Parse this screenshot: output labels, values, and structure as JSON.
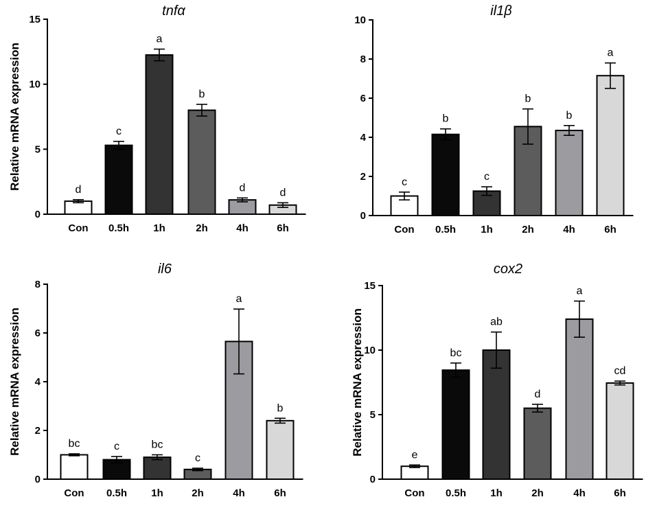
{
  "chart_data": [
    {
      "type": "bar",
      "title": "tnfα",
      "ylabel": "Relative mRNA expression",
      "xlabel": "",
      "ylim": [
        0,
        15
      ],
      "yticks": [
        "0",
        "5",
        "10",
        "15"
      ],
      "categories": [
        "Con",
        "0.5h",
        "1h",
        "2h",
        "4h",
        "6h"
      ],
      "values": [
        1.0,
        5.3,
        12.25,
        8.0,
        1.1,
        0.7
      ],
      "errors": [
        0.12,
        0.3,
        0.45,
        0.45,
        0.15,
        0.18
      ],
      "significance": [
        "d",
        "c",
        "a",
        "b",
        "d",
        "d"
      ],
      "colors": [
        "#ffffff",
        "#0a0a0a",
        "#333333",
        "#5c5c5c",
        "#9c9ca0",
        "#d8d8d8"
      ]
    },
    {
      "type": "bar",
      "title": "il1β",
      "ylabel": "",
      "xlabel": "",
      "ylim": [
        0,
        10
      ],
      "yticks": [
        "0",
        "2",
        "4",
        "6",
        "8",
        "10"
      ],
      "categories": [
        "Con",
        "0.5h",
        "1h",
        "2h",
        "4h",
        "6h"
      ],
      "values": [
        1.0,
        4.15,
        1.25,
        4.55,
        4.35,
        7.15
      ],
      "errors": [
        0.2,
        0.28,
        0.22,
        0.9,
        0.25,
        0.65
      ],
      "significance": [
        "c",
        "b",
        "c",
        "b",
        "b",
        "a"
      ],
      "colors": [
        "#ffffff",
        "#0a0a0a",
        "#333333",
        "#5c5c5c",
        "#9c9ca0",
        "#d8d8d8"
      ]
    },
    {
      "type": "bar",
      "title": "il6",
      "ylabel": "Relative mRNA expression",
      "xlabel": "",
      "ylim": [
        0,
        8
      ],
      "yticks": [
        "0",
        "2",
        "4",
        "6",
        "8"
      ],
      "categories": [
        "Con",
        "0.5h",
        "1h",
        "2h",
        "4h",
        "6h"
      ],
      "values": [
        1.0,
        0.8,
        0.9,
        0.4,
        5.65,
        2.4
      ],
      "errors": [
        0.04,
        0.13,
        0.1,
        0.05,
        1.33,
        0.1
      ],
      "significance": [
        "bc",
        "c",
        "bc",
        "c",
        "a",
        "b"
      ],
      "colors": [
        "#ffffff",
        "#0a0a0a",
        "#333333",
        "#5c5c5c",
        "#9c9ca0",
        "#d8d8d8"
      ]
    },
    {
      "type": "bar",
      "title": "cox2",
      "ylabel": "Relative mRNA expression",
      "xlabel": "",
      "ylim": [
        0,
        15
      ],
      "yticks": [
        "0",
        "5",
        "10",
        "15"
      ],
      "categories": [
        "Con",
        "0.5h",
        "1h",
        "2h",
        "4h",
        "6h"
      ],
      "values": [
        1.0,
        8.45,
        10.0,
        5.5,
        12.4,
        7.45
      ],
      "errors": [
        0.1,
        0.55,
        1.4,
        0.3,
        1.4,
        0.15
      ],
      "significance": [
        "e",
        "bc",
        "ab",
        "d",
        "a",
        "cd"
      ],
      "colors": [
        "#ffffff",
        "#0a0a0a",
        "#333333",
        "#5c5c5c",
        "#9c9ca0",
        "#d8d8d8"
      ]
    }
  ]
}
